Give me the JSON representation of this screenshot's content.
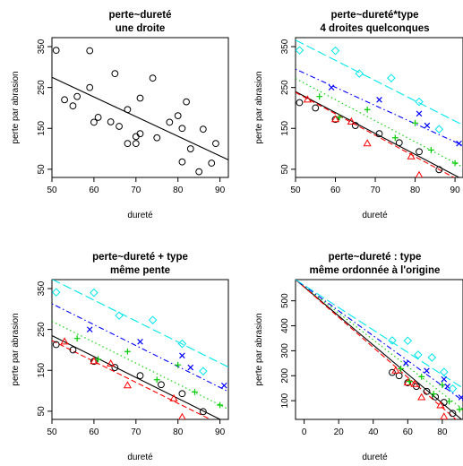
{
  "figure": {
    "colors": {
      "black": "#000000",
      "red": "#ff0000",
      "green": "#00cd00",
      "blue": "#0000ff",
      "cyan": "#00e5ee"
    }
  },
  "chart_data": [
    {
      "type": "scatter",
      "title": "perte~dureté\nune droite",
      "xlabel": "dureté",
      "ylabel": "perte par abrasion",
      "xlim": [
        50,
        92
      ],
      "ylim": [
        30,
        372
      ],
      "xticks": [
        50,
        60,
        70,
        80,
        90
      ],
      "yticks": [
        50,
        150,
        250,
        350
      ],
      "grid": false,
      "series": [
        {
          "color": "black",
          "marker": "circle",
          "x": [
            51,
            53,
            55,
            56,
            59,
            59,
            60,
            61,
            64,
            65,
            66,
            68,
            68,
            70,
            70,
            71,
            71,
            74,
            75,
            78,
            80,
            81,
            81,
            82,
            83,
            85,
            86,
            88,
            89
          ],
          "y": [
            341,
            220,
            205,
            228,
            340,
            250,
            165,
            177,
            166,
            284,
            155,
            196,
            113,
            130,
            113,
            224,
            137,
            273,
            127,
            165,
            181,
            150,
            68,
            215,
            100,
            44,
            148,
            65,
            113
          ]
        }
      ],
      "lines": [
        {
          "color": "black",
          "style": "solid",
          "x": [
            50,
            92
          ],
          "y": [
            275,
            73
          ]
        }
      ]
    },
    {
      "type": "scatter",
      "title": "perte~dureté*type\n4 droites quelconques",
      "xlabel": "dureté",
      "ylabel": "perte par abrasion",
      "xlim": [
        50,
        92
      ],
      "ylim": [
        30,
        372
      ],
      "xticks": [
        50,
        60,
        70,
        80,
        90
      ],
      "yticks": [
        50,
        150,
        250,
        350
      ],
      "grid": false,
      "series": [
        {
          "color": "black",
          "marker": "circle",
          "x": [
            51,
            55,
            60,
            65,
            71,
            76,
            81,
            86
          ],
          "y": [
            213,
            200,
            172,
            157,
            137,
            115,
            93,
            49
          ]
        },
        {
          "color": "red",
          "marker": "triangle",
          "x": [
            53,
            60,
            64,
            68,
            79,
            81
          ],
          "y": [
            220,
            172,
            166,
            113,
            81,
            35
          ]
        },
        {
          "color": "green",
          "marker": "plus",
          "x": [
            56,
            61,
            68,
            75,
            80,
            84,
            90
          ],
          "y": [
            228,
            177,
            196,
            127,
            163,
            97,
            65
          ]
        },
        {
          "color": "blue",
          "marker": "cross",
          "x": [
            59,
            71,
            81,
            83,
            91
          ],
          "y": [
            250,
            220,
            186,
            157,
            113
          ]
        },
        {
          "color": "cyan",
          "marker": "diamond",
          "x": [
            51,
            60,
            66,
            74,
            81,
            86
          ],
          "y": [
            341,
            340,
            284,
            273,
            215,
            148
          ]
        }
      ],
      "lines": [
        {
          "color": "black",
          "style": "solid",
          "x": [
            50,
            92
          ],
          "y": [
            240,
            25
          ]
        },
        {
          "color": "red",
          "style": "dashed",
          "x": [
            50,
            92
          ],
          "y": [
            238,
            18
          ]
        },
        {
          "color": "green",
          "style": "dotted",
          "x": [
            50,
            92
          ],
          "y": [
            272,
            55
          ]
        },
        {
          "color": "blue",
          "style": "dotdash",
          "x": [
            50,
            92
          ],
          "y": [
            295,
            108
          ]
        },
        {
          "color": "cyan",
          "style": "longdash",
          "x": [
            50,
            92
          ],
          "y": [
            366,
            158
          ]
        }
      ]
    },
    {
      "type": "scatter",
      "title": "perte~dureté + type\nmême pente",
      "xlabel": "dureté",
      "ylabel": "perte par abrasion",
      "xlim": [
        50,
        92
      ],
      "ylim": [
        30,
        372
      ],
      "xticks": [
        50,
        60,
        70,
        80,
        90
      ],
      "yticks": [
        50,
        150,
        250,
        350
      ],
      "grid": false,
      "series": [
        {
          "color": "black",
          "marker": "circle",
          "x": [
            51,
            55,
            60,
            65,
            71,
            76,
            81,
            86
          ],
          "y": [
            213,
            200,
            172,
            157,
            137,
            115,
            93,
            49
          ]
        },
        {
          "color": "red",
          "marker": "triangle",
          "x": [
            53,
            60,
            64,
            68,
            79,
            81
          ],
          "y": [
            220,
            172,
            166,
            113,
            81,
            35
          ]
        },
        {
          "color": "green",
          "marker": "plus",
          "x": [
            56,
            61,
            68,
            75,
            80,
            84,
            90
          ],
          "y": [
            228,
            177,
            196,
            127,
            163,
            97,
            65
          ]
        },
        {
          "color": "blue",
          "marker": "cross",
          "x": [
            59,
            71,
            81,
            83,
            91
          ],
          "y": [
            250,
            220,
            186,
            157,
            113
          ]
        },
        {
          "color": "cyan",
          "marker": "diamond",
          "x": [
            51,
            60,
            66,
            74,
            81,
            86
          ],
          "y": [
            341,
            340,
            284,
            273,
            215,
            148
          ]
        }
      ],
      "lines": [
        {
          "color": "black",
          "style": "solid",
          "x": [
            50,
            92
          ],
          "y": [
            235,
            20
          ]
        },
        {
          "color": "red",
          "style": "dashed",
          "x": [
            50,
            92
          ],
          "y": [
            223,
            8
          ]
        },
        {
          "color": "green",
          "style": "dotted",
          "x": [
            50,
            92
          ],
          "y": [
            270,
            55
          ]
        },
        {
          "color": "blue",
          "style": "dotdash",
          "x": [
            50,
            92
          ],
          "y": [
            313,
            98
          ]
        },
        {
          "color": "cyan",
          "style": "longdash",
          "x": [
            50,
            92
          ],
          "y": [
            373,
            158
          ]
        }
      ]
    },
    {
      "type": "scatter",
      "title": "perte~dureté : type\nmême ordonnée à l'origine",
      "xlabel": "dureté",
      "ylabel": "perte par abrasion",
      "xlim": [
        -5,
        92
      ],
      "ylim": [
        25,
        585
      ],
      "xticks": [
        0,
        20,
        40,
        60,
        80
      ],
      "yticks": [
        100,
        200,
        300,
        400,
        500
      ],
      "grid": false,
      "series": [
        {
          "color": "black",
          "marker": "circle",
          "x": [
            51,
            55,
            60,
            65,
            71,
            76,
            81,
            86
          ],
          "y": [
            213,
            200,
            172,
            157,
            137,
            115,
            93,
            49
          ]
        },
        {
          "color": "red",
          "marker": "triangle",
          "x": [
            53,
            60,
            64,
            68,
            79,
            81
          ],
          "y": [
            220,
            172,
            166,
            113,
            81,
            35
          ]
        },
        {
          "color": "green",
          "marker": "plus",
          "x": [
            56,
            61,
            68,
            75,
            80,
            84,
            90
          ],
          "y": [
            228,
            177,
            196,
            127,
            163,
            97,
            65
          ]
        },
        {
          "color": "blue",
          "marker": "cross",
          "x": [
            59,
            71,
            81,
            83,
            91
          ],
          "y": [
            250,
            220,
            186,
            157,
            113
          ]
        },
        {
          "color": "cyan",
          "marker": "diamond",
          "x": [
            51,
            60,
            66,
            74,
            81,
            86
          ],
          "y": [
            341,
            340,
            284,
            273,
            215,
            148
          ]
        }
      ],
      "lines": [
        {
          "color": "black",
          "style": "solid",
          "x": [
            -5,
            92
          ],
          "y": [
            585,
            20
          ]
        },
        {
          "color": "red",
          "style": "dashed",
          "x": [
            -5,
            92
          ],
          "y": [
            585,
            0
          ]
        },
        {
          "color": "green",
          "style": "dotted",
          "x": [
            -5,
            92
          ],
          "y": [
            585,
            65
          ]
        },
        {
          "color": "blue",
          "style": "dotdash",
          "x": [
            -5,
            92
          ],
          "y": [
            585,
            100
          ]
        },
        {
          "color": "cyan",
          "style": "longdash",
          "x": [
            -5,
            92
          ],
          "y": [
            585,
            150
          ]
        }
      ]
    }
  ]
}
